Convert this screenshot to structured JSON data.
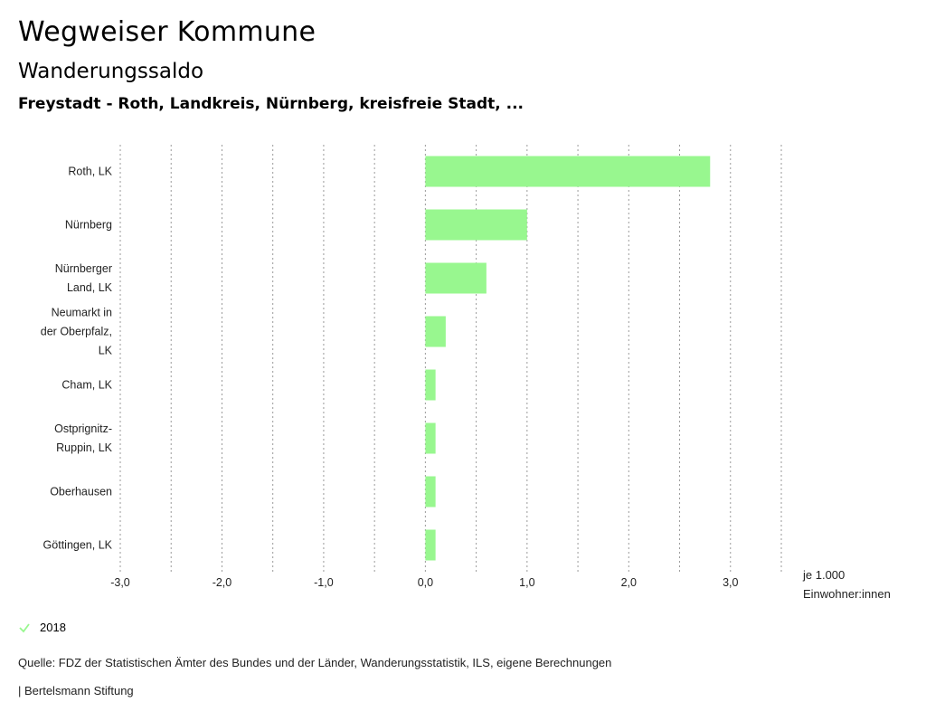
{
  "header": {
    "app_title": "Wegweiser Kommune",
    "chart_title": "Wanderungssaldo",
    "subtitle": "Freystadt - Roth, Landkreis, Nürnberg, kreisfreie Stadt, ..."
  },
  "unit": {
    "line1": "je 1.000",
    "line2": "Einwohner:innen"
  },
  "legend": {
    "label": "2018",
    "icon": "check-icon",
    "color": "#98f78f"
  },
  "footer": {
    "source": "Quelle: FDZ der Statistischen Ämter des Bundes und der Länder, Wanderungsstatistik, ILS, eigene Berechnungen",
    "publisher": "| Bertelsmann Stiftung"
  },
  "chart_data": {
    "type": "bar",
    "orientation": "horizontal",
    "categories": [
      [
        "Roth, LK"
      ],
      [
        "Nürnberg"
      ],
      [
        "Nürnberger",
        "Land, LK"
      ],
      [
        "Neumarkt in",
        "der Oberpfalz,",
        "LK"
      ],
      [
        "Cham, LK"
      ],
      [
        "Ostprignitz-",
        "Ruppin, LK"
      ],
      [
        "Oberhausen"
      ],
      [
        "Göttingen, LK"
      ]
    ],
    "series": [
      {
        "name": "2018",
        "color": "#98f78f",
        "values": [
          2.8,
          1.0,
          0.6,
          0.2,
          0.1,
          0.1,
          0.1,
          0.1
        ]
      }
    ],
    "xlim": [
      -3.0,
      3.5
    ],
    "ticks": [
      -3.0,
      -2.0,
      -1.0,
      0.0,
      1.0,
      2.0,
      3.0
    ],
    "tick_labels": [
      "-3,0",
      "-2,0",
      "-1,0",
      "0,0",
      "1,0",
      "2,0",
      "3,0"
    ],
    "gridlines_every": 0.5,
    "xlabel": "je 1.000 Einwohner:innen",
    "ylabel": ""
  }
}
